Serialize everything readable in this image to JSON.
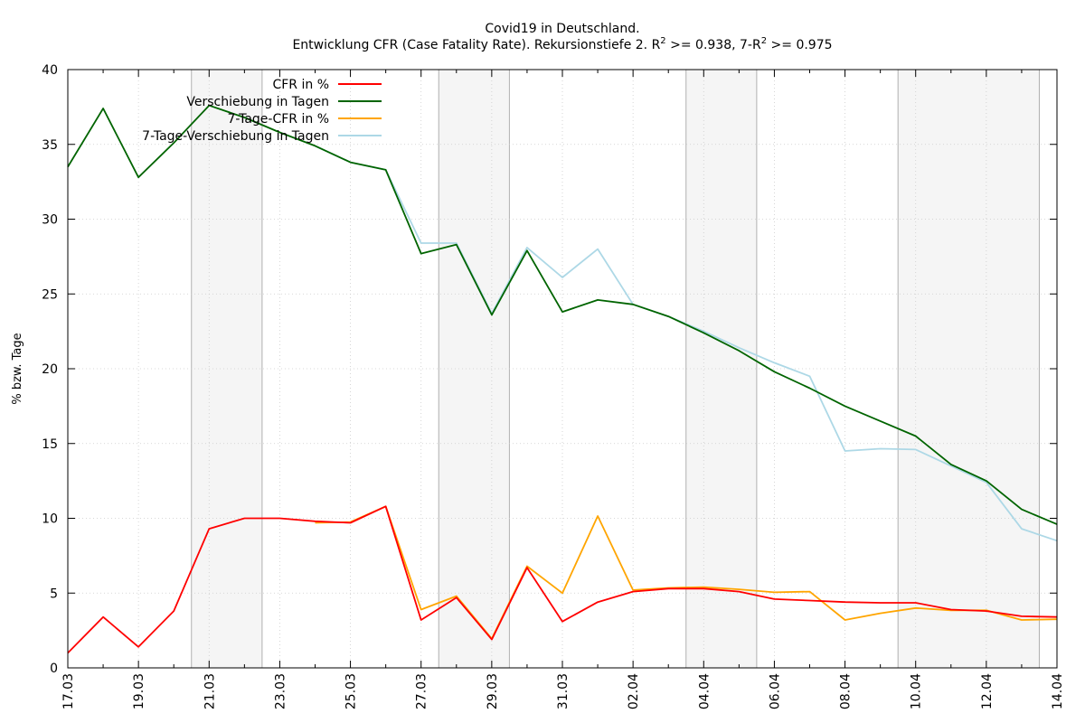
{
  "chart_data": {
    "type": "line",
    "title": "Covid19 in Deutschland.",
    "subtitle_prefix": "Entwicklung CFR (Case Fatality Rate). Rekursionstiefe 2. R",
    "subtitle_sup1": "2",
    "subtitle_mid": " >= 0.938, 7-R",
    "subtitle_sup2": "2",
    "subtitle_suffix": " >= 0.975",
    "ylabel": "% bzw. Tage",
    "xlabel": "",
    "ylim": [
      0,
      40
    ],
    "yticks": [
      0,
      5,
      10,
      15,
      20,
      25,
      30,
      35,
      40
    ],
    "x": [
      "17.03",
      "18.03",
      "19.03",
      "20.03",
      "21.03",
      "22.03",
      "23.03",
      "24.03",
      "25.03",
      "26.03",
      "27.03",
      "28.03",
      "29.03",
      "30.03",
      "31.03",
      "01.04",
      "02.04",
      "03.04",
      "04.04",
      "05.04",
      "06.04",
      "07.04",
      "08.04",
      "09.04",
      "10.04",
      "11.04",
      "12.04",
      "13.04",
      "14.04"
    ],
    "xtick_labels": [
      "17.03",
      "19.03",
      "21.03",
      "23.03",
      "25.03",
      "27.03",
      "29.03",
      "31.03",
      "02.04",
      "04.04",
      "06.04",
      "08.04",
      "10.04",
      "12.04",
      "14.04"
    ],
    "weekend_bands": [
      [
        "20.03",
        "22.03"
      ],
      [
        "27.03",
        "29.03"
      ],
      [
        "03.04",
        "05.04"
      ],
      [
        "09.04",
        "13.04"
      ]
    ],
    "grid": true,
    "legend_position": "top-left",
    "series": [
      {
        "name": "CFR in %",
        "color": "#ff0000",
        "values": [
          1.0,
          3.4,
          1.4,
          3.8,
          9.3,
          10.0,
          10.0,
          9.8,
          9.7,
          10.8,
          3.2,
          4.7,
          1.9,
          6.7,
          3.1,
          4.4,
          5.1,
          5.3,
          5.3,
          5.1,
          4.6,
          4.5,
          4.4,
          4.35,
          4.35,
          3.9,
          3.8,
          3.45,
          3.4
        ]
      },
      {
        "name": "Verschiebung in Tagen",
        "color": "#006400",
        "values": [
          33.5,
          37.4,
          32.8,
          35.1,
          37.6,
          36.8,
          35.8,
          34.9,
          33.8,
          33.3,
          27.7,
          28.3,
          23.6,
          27.9,
          23.8,
          24.6,
          24.3,
          23.5,
          22.4,
          21.2,
          19.8,
          18.7,
          17.5,
          16.5,
          15.5,
          13.6,
          12.5,
          10.6,
          9.6
        ]
      },
      {
        "name": "7-Tage-CFR in %",
        "color": "#ffa500",
        "values": [
          null,
          null,
          null,
          null,
          null,
          null,
          null,
          9.7,
          9.75,
          10.8,
          3.9,
          4.8,
          1.95,
          6.8,
          5.0,
          10.15,
          5.2,
          5.35,
          5.4,
          5.25,
          5.05,
          5.1,
          3.2,
          3.65,
          4.0,
          3.85,
          3.85,
          3.2,
          3.25
        ]
      },
      {
        "name": "7-Tage-Verschiebung in Tagen",
        "color": "#add8e6",
        "values": [
          null,
          null,
          null,
          null,
          null,
          null,
          null,
          34.9,
          33.8,
          33.3,
          28.4,
          28.4,
          23.7,
          28.1,
          26.1,
          28.0,
          24.3,
          23.5,
          22.5,
          21.4,
          20.4,
          19.5,
          14.5,
          14.65,
          14.6,
          13.5,
          12.4,
          9.3,
          8.5
        ]
      }
    ]
  }
}
